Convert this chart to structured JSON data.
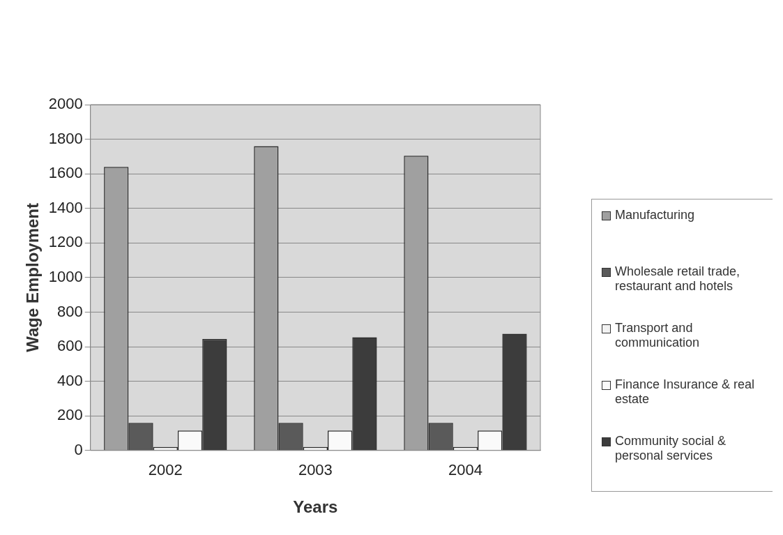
{
  "chart_data": {
    "type": "bar",
    "xlabel": "Years",
    "ylabel": "Wage Employment",
    "categories": [
      "2002",
      "2003",
      "2004"
    ],
    "series": [
      {
        "name": "Manufacturing",
        "color": "#a0a0a0",
        "values": [
          1640,
          1760,
          1705
        ]
      },
      {
        "name": "Wholesale retail trade, restaurant  and hotels",
        "color": "#5a5a5a",
        "values": [
          160,
          160,
          160
        ]
      },
      {
        "name": "Transport and communication",
        "color": "#f2f2f2",
        "values": [
          20,
          20,
          20
        ]
      },
      {
        "name": "Finance  Insurance & real estate",
        "color": "#fafafa",
        "values": [
          115,
          115,
          115
        ]
      },
      {
        "name": "Community social & personal services",
        "color": "#3c3c3c",
        "values": [
          645,
          655,
          675
        ]
      }
    ],
    "ylim": [
      0,
      2000
    ],
    "yticks": [
      0,
      200,
      400,
      600,
      800,
      1000,
      1200,
      1400,
      1600,
      1800,
      2000
    ],
    "grid": "y",
    "legend": "right"
  }
}
